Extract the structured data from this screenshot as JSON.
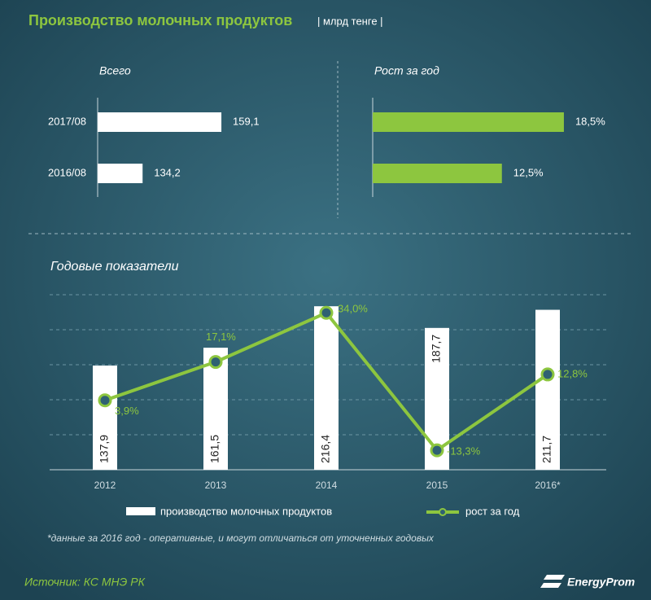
{
  "header": {
    "title": "Производство молочных продуктов",
    "unit": "| млрд тенге |"
  },
  "chart_data": [
    {
      "type": "hbar",
      "title": "Всего",
      "categories": [
        "2017/08",
        "2016/08"
      ],
      "values": [
        159.1,
        134.2
      ],
      "value_labels": [
        "159,1",
        "134,2"
      ],
      "color": "#ffffff",
      "xlim": [
        120,
        165
      ]
    },
    {
      "type": "hbar",
      "title": "Рост за год",
      "values": [
        18.5,
        12.5
      ],
      "value_labels": [
        "18,5%",
        "12,5%"
      ],
      "color": "#8dc63f",
      "xlim": [
        0,
        20
      ]
    },
    {
      "type": "combo",
      "title": "Годовые показатели",
      "categories": [
        "2012",
        "2013",
        "2014",
        "2015",
        "2016*"
      ],
      "series": [
        {
          "name": "производство молочных продуктов",
          "type": "bar",
          "color": "#ffffff",
          "values": [
            137.9,
            161.5,
            216.4,
            187.7,
            211.7
          ],
          "value_labels": [
            "137,9",
            "161,5",
            "216,4",
            "187,7",
            "211,7"
          ]
        },
        {
          "name": "рост за год",
          "type": "line",
          "axis": "y2",
          "color": "#8dc63f",
          "values": [
            3.9,
            17.1,
            34.0,
            -13.3,
            12.8
          ],
          "value_labels": [
            "3,9%",
            "17,1%",
            "34,0%",
            "-13,3%",
            "12,8%"
          ]
        }
      ],
      "ylim": [
        0,
        250
      ],
      "y2lim": [
        -20,
        45
      ],
      "note": "*данные за 2016 год - оперативные, и могут отличаться от уточненных годовых"
    }
  ],
  "footer": {
    "source": "Источник: КС МНЭ РК",
    "logo": "EnergyProm"
  }
}
